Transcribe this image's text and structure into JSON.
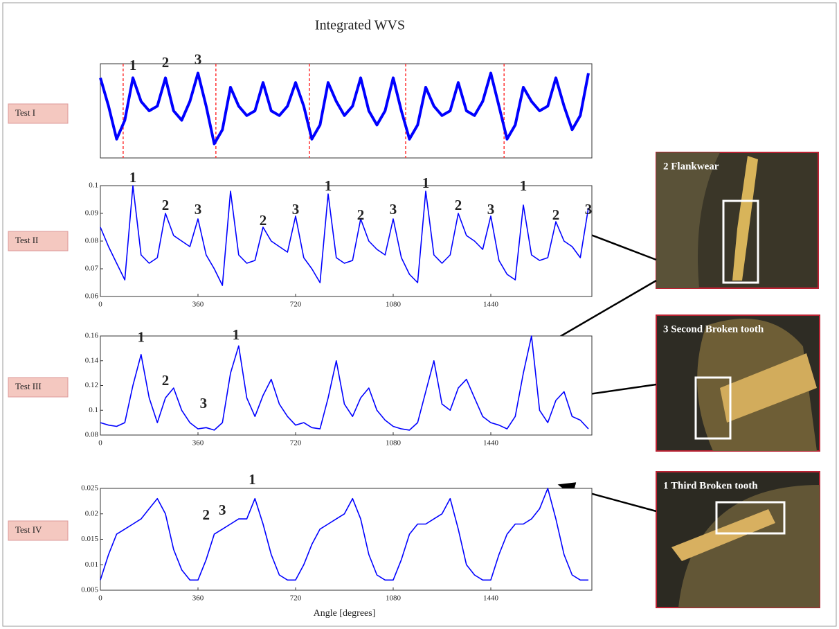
{
  "chart_data": [
    {
      "type": "line",
      "title": "Integrated WVS",
      "label": "Test I",
      "color": "#0000ff",
      "vline_color": "#ff3333",
      "xlim": [
        0,
        1800
      ],
      "ylim": [
        0,
        1
      ],
      "vlines": [
        84,
        426,
        771,
        1126,
        1489
      ],
      "x": [
        0,
        30,
        60,
        90,
        120,
        150,
        180,
        210,
        240,
        270,
        300,
        330,
        360,
        390,
        420,
        450,
        480,
        510,
        540,
        570,
        600,
        630,
        660,
        690,
        720,
        750,
        780,
        810,
        840,
        870,
        900,
        930,
        960,
        990,
        1020,
        1050,
        1080,
        1110,
        1140,
        1170,
        1200,
        1230,
        1260,
        1290,
        1320,
        1350,
        1380,
        1410,
        1440,
        1470,
        1500,
        1530,
        1560,
        1590,
        1620,
        1650,
        1680,
        1710,
        1740,
        1770,
        1800
      ],
      "values": [
        0.85,
        0.55,
        0.2,
        0.4,
        0.85,
        0.6,
        0.5,
        0.55,
        0.85,
        0.5,
        0.4,
        0.6,
        0.9,
        0.55,
        0.15,
        0.3,
        0.75,
        0.55,
        0.45,
        0.5,
        0.8,
        0.5,
        0.45,
        0.55,
        0.8,
        0.55,
        0.2,
        0.35,
        0.8,
        0.6,
        0.45,
        0.55,
        0.85,
        0.5,
        0.35,
        0.5,
        0.85,
        0.5,
        0.2,
        0.35,
        0.75,
        0.55,
        0.45,
        0.5,
        0.8,
        0.5,
        0.45,
        0.6,
        0.9,
        0.55,
        0.2,
        0.35,
        0.75,
        0.6,
        0.5,
        0.55,
        0.85,
        0.55,
        0.3,
        0.45,
        0.9
      ],
      "annotations": [
        {
          "text": "1",
          "x": 120,
          "y": 0.97
        },
        {
          "text": "2",
          "x": 240,
          "y": 1.0
        },
        {
          "text": "3",
          "x": 360,
          "y": 1.03
        }
      ]
    },
    {
      "type": "line",
      "label": "Test II",
      "color": "#0000ff",
      "xlim": [
        0,
        1800
      ],
      "ylim": [
        0.06,
        0.1
      ],
      "yticks": [
        0.06,
        0.07,
        0.08,
        0.09,
        0.1
      ],
      "xticks": [
        0,
        360,
        720,
        1080,
        1440
      ],
      "x": [
        0,
        30,
        60,
        90,
        120,
        150,
        180,
        210,
        240,
        270,
        300,
        330,
        360,
        390,
        420,
        450,
        480,
        510,
        540,
        570,
        600,
        630,
        660,
        690,
        720,
        750,
        780,
        810,
        840,
        870,
        900,
        930,
        960,
        990,
        1020,
        1050,
        1080,
        1110,
        1140,
        1170,
        1200,
        1230,
        1260,
        1290,
        1320,
        1350,
        1380,
        1410,
        1440,
        1470,
        1500,
        1530,
        1560,
        1590,
        1620,
        1650,
        1680,
        1710,
        1740,
        1770,
        1800
      ],
      "values": [
        0.085,
        0.078,
        0.072,
        0.066,
        0.1,
        0.075,
        0.072,
        0.074,
        0.09,
        0.082,
        0.08,
        0.078,
        0.088,
        0.075,
        0.07,
        0.064,
        0.098,
        0.075,
        0.072,
        0.073,
        0.085,
        0.08,
        0.078,
        0.076,
        0.089,
        0.074,
        0.07,
        0.065,
        0.097,
        0.074,
        0.072,
        0.073,
        0.088,
        0.08,
        0.077,
        0.075,
        0.088,
        0.074,
        0.068,
        0.065,
        0.098,
        0.075,
        0.072,
        0.075,
        0.09,
        0.082,
        0.08,
        0.077,
        0.089,
        0.073,
        0.068,
        0.066,
        0.093,
        0.075,
        0.073,
        0.074,
        0.087,
        0.08,
        0.078,
        0.074,
        0.092
      ],
      "annotations": [
        {
          "text": "1",
          "x": 120,
          "y": 0.1025
        },
        {
          "text": "2",
          "x": 240,
          "y": 0.0925
        },
        {
          "text": "3",
          "x": 360,
          "y": 0.091
        },
        {
          "text": "2",
          "x": 600,
          "y": 0.087
        },
        {
          "text": "3",
          "x": 720,
          "y": 0.091
        },
        {
          "text": "1",
          "x": 840,
          "y": 0.0995
        },
        {
          "text": "2",
          "x": 960,
          "y": 0.089
        },
        {
          "text": "3",
          "x": 1080,
          "y": 0.091
        },
        {
          "text": "1",
          "x": 1200,
          "y": 0.1005
        },
        {
          "text": "2",
          "x": 1320,
          "y": 0.0925
        },
        {
          "text": "3",
          "x": 1440,
          "y": 0.091
        },
        {
          "text": "1",
          "x": 1560,
          "y": 0.0995
        },
        {
          "text": "2",
          "x": 1680,
          "y": 0.089
        },
        {
          "text": "3",
          "x": 1800,
          "y": 0.091
        }
      ]
    },
    {
      "type": "line",
      "label": "Test III",
      "color": "#0000ff",
      "xlim": [
        0,
        1800
      ],
      "ylim": [
        0.08,
        0.16
      ],
      "yticks": [
        0.08,
        0.1,
        0.12,
        0.14,
        0.16
      ],
      "xticks": [
        0,
        360,
        720,
        1080,
        1440
      ],
      "x": [
        0,
        30,
        60,
        90,
        120,
        150,
        180,
        210,
        240,
        270,
        300,
        330,
        360,
        390,
        420,
        450,
        480,
        510,
        540,
        570,
        600,
        630,
        660,
        690,
        720,
        750,
        780,
        810,
        840,
        870,
        900,
        930,
        960,
        990,
        1020,
        1050,
        1080,
        1110,
        1140,
        1170,
        1200,
        1230,
        1260,
        1290,
        1320,
        1350,
        1380,
        1410,
        1440,
        1470,
        1500,
        1530,
        1560,
        1590,
        1620,
        1650,
        1680,
        1710,
        1740,
        1770,
        1800
      ],
      "values": [
        0.09,
        0.088,
        0.087,
        0.09,
        0.12,
        0.145,
        0.11,
        0.09,
        0.11,
        0.118,
        0.1,
        0.09,
        0.085,
        0.086,
        0.084,
        0.09,
        0.13,
        0.152,
        0.11,
        0.095,
        0.112,
        0.125,
        0.105,
        0.095,
        0.088,
        0.09,
        0.086,
        0.085,
        0.11,
        0.14,
        0.105,
        0.095,
        0.11,
        0.118,
        0.1,
        0.092,
        0.087,
        0.085,
        0.084,
        0.09,
        0.115,
        0.14,
        0.105,
        0.1,
        0.118,
        0.125,
        0.11,
        0.095,
        0.09,
        0.088,
        0.085,
        0.095,
        0.13,
        0.16,
        0.1,
        0.09,
        0.108,
        0.115,
        0.095,
        0.092,
        0.085
      ],
      "annotations": [
        {
          "text": "1",
          "x": 150,
          "y": 0.158
        },
        {
          "text": "2",
          "x": 240,
          "y": 0.123
        },
        {
          "text": "3",
          "x": 380,
          "y": 0.1045
        },
        {
          "text": "1",
          "x": 500,
          "y": 0.16
        }
      ]
    },
    {
      "type": "line",
      "label": "Test IV",
      "color": "#0000ff",
      "xlabel": "Angle [degrees]",
      "xlim": [
        0,
        1800
      ],
      "ylim": [
        0.005,
        0.025
      ],
      "yticks": [
        0.005,
        0.01,
        0.015,
        0.02,
        0.025
      ],
      "xticks": [
        0,
        360,
        720,
        1080,
        1440
      ],
      "x": [
        0,
        30,
        60,
        90,
        120,
        150,
        180,
        210,
        240,
        270,
        300,
        330,
        360,
        390,
        420,
        450,
        480,
        510,
        540,
        570,
        600,
        630,
        660,
        690,
        720,
        750,
        780,
        810,
        840,
        870,
        900,
        930,
        960,
        990,
        1020,
        1050,
        1080,
        1110,
        1140,
        1170,
        1200,
        1230,
        1260,
        1290,
        1320,
        1350,
        1380,
        1410,
        1440,
        1470,
        1500,
        1530,
        1560,
        1590,
        1620,
        1650,
        1680,
        1710,
        1740,
        1770,
        1800
      ],
      "values": [
        0.007,
        0.012,
        0.016,
        0.017,
        0.018,
        0.019,
        0.021,
        0.023,
        0.02,
        0.013,
        0.009,
        0.007,
        0.007,
        0.011,
        0.016,
        0.017,
        0.018,
        0.019,
        0.019,
        0.023,
        0.018,
        0.012,
        0.008,
        0.007,
        0.007,
        0.01,
        0.014,
        0.017,
        0.018,
        0.019,
        0.02,
        0.023,
        0.019,
        0.012,
        0.008,
        0.007,
        0.007,
        0.011,
        0.016,
        0.018,
        0.018,
        0.019,
        0.02,
        0.023,
        0.017,
        0.01,
        0.008,
        0.007,
        0.007,
        0.012,
        0.016,
        0.018,
        0.018,
        0.019,
        0.021,
        0.025,
        0.019,
        0.012,
        0.008,
        0.007,
        0.007
      ],
      "annotations": [
        {
          "text": "2",
          "x": 390,
          "y": 0.0195
        },
        {
          "text": "3",
          "x": 450,
          "y": 0.0205
        },
        {
          "text": "1",
          "x": 560,
          "y": 0.0265
        }
      ]
    }
  ],
  "photos": [
    {
      "caption": "2 Flankwear"
    },
    {
      "caption": "3 Second Broken tooth"
    },
    {
      "caption": "1 Third Broken tooth"
    }
  ]
}
